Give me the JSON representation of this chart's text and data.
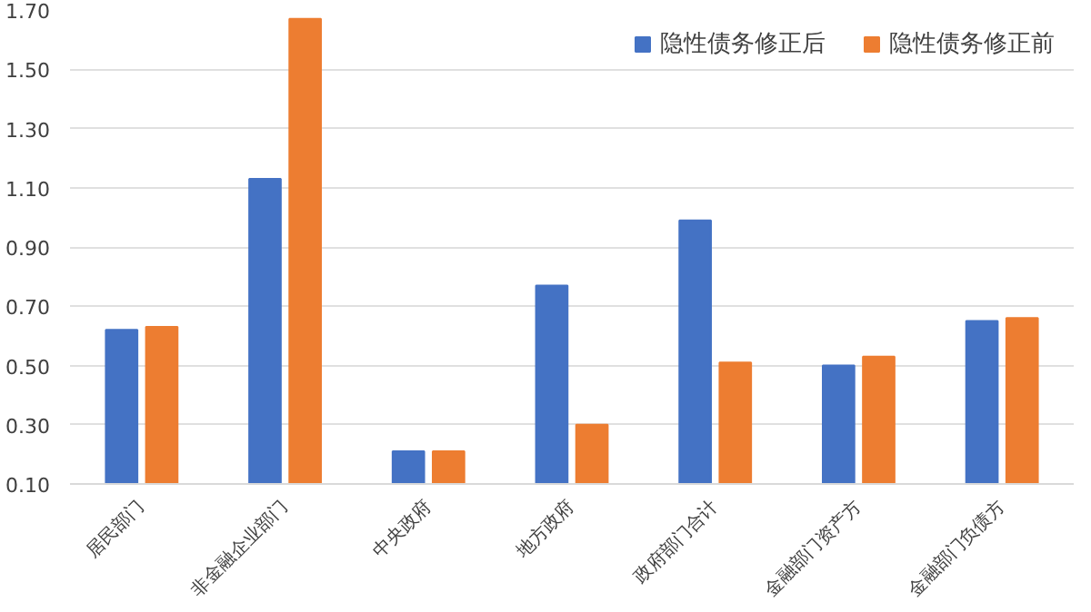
{
  "chart_data": {
    "type": "bar",
    "categories": [
      "居民部门",
      "非金融企业部门",
      "中央政府",
      "地方政府",
      "政府部门合计",
      "金融部门资产方",
      "金融部门负债方"
    ],
    "series": [
      {
        "name": "隐性债务修正后",
        "color": "#4472c4",
        "values": [
          0.62,
          1.13,
          0.21,
          0.77,
          0.99,
          0.5,
          0.65
        ]
      },
      {
        "name": "隐性债务修正前",
        "color": "#ed7d31",
        "values": [
          0.63,
          1.67,
          0.21,
          0.3,
          0.51,
          0.53,
          0.66
        ]
      }
    ],
    "ylim": [
      0.1,
      1.7
    ],
    "yticks": [
      {
        "value": 0.1,
        "label": "0.10"
      },
      {
        "value": 0.3,
        "label": "0.30"
      },
      {
        "value": 0.5,
        "label": "0.50"
      },
      {
        "value": 0.7,
        "label": "0.70"
      },
      {
        "value": 0.9,
        "label": "0.90"
      },
      {
        "value": 1.1,
        "label": "1.10"
      },
      {
        "value": 1.3,
        "label": "1.30"
      },
      {
        "value": 1.5,
        "label": "1.50"
      },
      {
        "value": 1.7,
        "label": "1.70"
      }
    ],
    "grid": "y",
    "legend": "top right"
  }
}
